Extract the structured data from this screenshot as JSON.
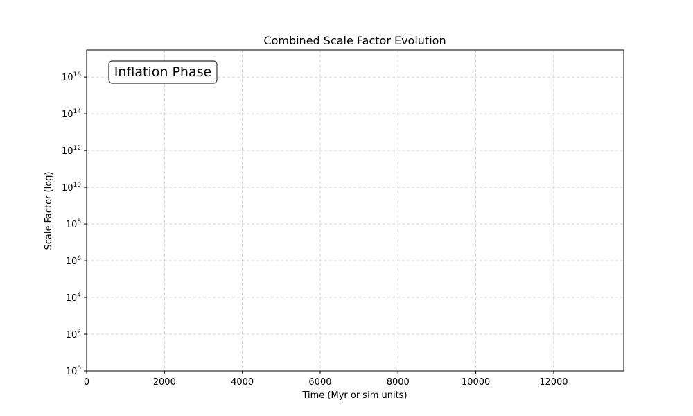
{
  "chart_data": {
    "type": "line",
    "title": "Combined Scale Factor Evolution",
    "xlabel": "Time (Myr or sim units)",
    "ylabel": "Scale Factor (log)",
    "x_scale": "linear",
    "y_scale": "log",
    "xlim": [
      0,
      13800
    ],
    "ylim": [
      1,
      3e+17
    ],
    "x_ticks": [
      0,
      2000,
      4000,
      6000,
      8000,
      10000,
      12000
    ],
    "x_tick_labels": [
      "0",
      "2000",
      "4000",
      "6000",
      "8000",
      "10000",
      "12000"
    ],
    "y_tick_exponents": [
      0,
      2,
      4,
      6,
      8,
      10,
      12,
      14,
      16
    ],
    "y_tick_base": "10",
    "grid": true,
    "series": [],
    "annotation": "Inflation Phase"
  }
}
